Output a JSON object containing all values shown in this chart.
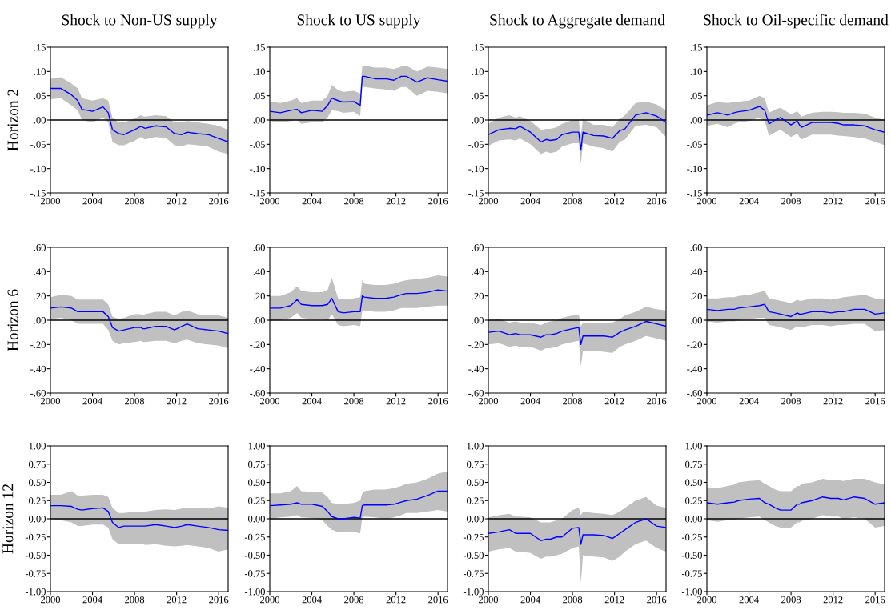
{
  "chart_data": [
    {
      "type": "line",
      "title": "Shock to Non-US supply",
      "ylabel": "Horizon 2",
      "x": [
        2000,
        2001,
        2002,
        2002.6,
        2003,
        2004,
        2005,
        2005.5,
        2005.9,
        2006.5,
        2007,
        2008,
        2008.6,
        2008.8,
        2009,
        2010,
        2011,
        2011.8,
        2012.5,
        2013,
        2014,
        2015,
        2016,
        2016.9
      ],
      "xlim": [
        2000,
        2016.9
      ],
      "xticks": [
        2000,
        2004,
        2008,
        2012,
        2016
      ],
      "ylim": [
        -0.15,
        0.15
      ],
      "yticks": [
        {
          "value": -0.15,
          "label": "-.15"
        },
        {
          "value": -0.1,
          "label": "-.10"
        },
        {
          "value": -0.05,
          "label": "-.05"
        },
        {
          "value": 0,
          "label": ".00"
        },
        {
          "value": 0.05,
          "label": ".05"
        },
        {
          "value": 0.1,
          "label": ".10"
        },
        {
          "value": 0.15,
          "label": ".15"
        }
      ],
      "ref_lines": [
        {
          "axis": "y",
          "value": 0,
          "color": "#000000"
        }
      ],
      "series": [
        {
          "color": "#0000ff",
          "values": [
            0.065,
            0.065,
            0.052,
            0.04,
            0.022,
            0.018,
            0.027,
            0.015,
            -0.02,
            -0.028,
            -0.03,
            -0.02,
            -0.013,
            -0.015,
            -0.017,
            -0.012,
            -0.014,
            -0.028,
            -0.03,
            -0.025,
            -0.028,
            -0.03,
            -0.038,
            -0.045
          ],
          "lower": [
            0.043,
            0.045,
            0.03,
            0.02,
            0,
            -0.005,
            0.005,
            -0.005,
            -0.045,
            -0.052,
            -0.052,
            -0.043,
            -0.035,
            -0.038,
            -0.04,
            -0.035,
            -0.037,
            -0.052,
            -0.055,
            -0.05,
            -0.052,
            -0.055,
            -0.065,
            -0.07
          ],
          "upper": [
            0.085,
            0.088,
            0.075,
            0.065,
            0.045,
            0.04,
            0.045,
            0.04,
            0.005,
            -0.005,
            -0.005,
            0.003,
            0.01,
            0.008,
            0.007,
            0.01,
            0.008,
            -0.005,
            -0.005,
            -0.002,
            -0.005,
            -0.008,
            -0.012,
            -0.02
          ]
        }
      ]
    },
    {
      "type": "line",
      "title": "Shock to US supply",
      "x": [
        2000,
        2001,
        2002,
        2002.6,
        2003,
        2004,
        2005,
        2005.5,
        2005.9,
        2006.5,
        2007,
        2008,
        2008.6,
        2008.8,
        2009,
        2010,
        2011,
        2011.8,
        2012.5,
        2013,
        2014,
        2015,
        2016,
        2016.9
      ],
      "xlim": [
        2000,
        2016.9
      ],
      "xticks": [
        2000,
        2004,
        2008,
        2012,
        2016
      ],
      "ylim": [
        -0.15,
        0.15
      ],
      "yticks": [
        {
          "value": -0.15,
          "label": "-.15"
        },
        {
          "value": -0.1,
          "label": "-.10"
        },
        {
          "value": -0.05,
          "label": "-.05"
        },
        {
          "value": 0,
          "label": ".00"
        },
        {
          "value": 0.05,
          "label": ".05"
        },
        {
          "value": 0.1,
          "label": ".10"
        },
        {
          "value": 0.15,
          "label": ".15"
        }
      ],
      "ref_lines": [
        {
          "axis": "y",
          "value": 0,
          "color": "#000000"
        }
      ],
      "series": [
        {
          "color": "#0000ff",
          "values": [
            0.018,
            0.015,
            0.02,
            0.022,
            0.015,
            0.02,
            0.018,
            0.03,
            0.045,
            0.04,
            0.037,
            0.038,
            0.03,
            0.09,
            0.09,
            0.085,
            0.085,
            0.082,
            0.09,
            0.09,
            0.078,
            0.087,
            0.083,
            0.08
          ],
          "lower": [
            -0.002,
            -0.005,
            -0.002,
            0,
            -0.008,
            -0.005,
            -0.005,
            0.005,
            0.02,
            0.018,
            0.015,
            0.017,
            0.008,
            0.07,
            0.068,
            0.065,
            0.063,
            0.06,
            0.068,
            0.068,
            0.05,
            0.06,
            0.058,
            0.055
          ],
          "upper": [
            0.038,
            0.035,
            0.04,
            0.045,
            0.035,
            0.04,
            0.04,
            0.05,
            0.072,
            0.062,
            0.058,
            0.06,
            0.055,
            0.112,
            0.112,
            0.108,
            0.108,
            0.105,
            0.11,
            0.112,
            0.1,
            0.11,
            0.108,
            0.105
          ]
        }
      ]
    },
    {
      "type": "line",
      "title": "Shock to Aggregate demand",
      "x": [
        2000,
        2001,
        2002,
        2002.6,
        2003,
        2004,
        2005,
        2005.5,
        2005.9,
        2006.5,
        2007,
        2008,
        2008.6,
        2008.8,
        2009,
        2010,
        2011,
        2011.8,
        2012.5,
        2013,
        2014,
        2015,
        2016,
        2016.9
      ],
      "xlim": [
        2000,
        2016.9
      ],
      "xticks": [
        2000,
        2004,
        2008,
        2012,
        2016
      ],
      "ylim": [
        -0.15,
        0.15
      ],
      "yticks": [
        {
          "value": -0.15,
          "label": "-.15"
        },
        {
          "value": -0.1,
          "label": "-.10"
        },
        {
          "value": -0.05,
          "label": "-.05"
        },
        {
          "value": 0,
          "label": ".00"
        },
        {
          "value": 0.05,
          "label": ".05"
        },
        {
          "value": 0.1,
          "label": ".10"
        },
        {
          "value": 0.15,
          "label": ".15"
        }
      ],
      "ref_lines": [
        {
          "axis": "y",
          "value": 0,
          "color": "#000000"
        }
      ],
      "series": [
        {
          "color": "#0000ff",
          "values": [
            -0.03,
            -0.02,
            -0.017,
            -0.018,
            -0.013,
            -0.025,
            -0.045,
            -0.04,
            -0.042,
            -0.04,
            -0.03,
            -0.025,
            -0.025,
            -0.062,
            -0.025,
            -0.032,
            -0.033,
            -0.038,
            -0.022,
            -0.018,
            0.01,
            0.015,
            0.008,
            -0.005
          ],
          "lower": [
            -0.053,
            -0.042,
            -0.04,
            -0.042,
            -0.038,
            -0.05,
            -0.07,
            -0.065,
            -0.068,
            -0.065,
            -0.055,
            -0.048,
            -0.048,
            -0.09,
            -0.048,
            -0.055,
            -0.058,
            -0.065,
            -0.045,
            -0.04,
            -0.012,
            -0.01,
            -0.015,
            -0.035
          ],
          "upper": [
            -0.008,
            0.005,
            0.01,
            0.005,
            0.008,
            -0.002,
            -0.02,
            -0.018,
            -0.018,
            -0.015,
            -0.008,
            0,
            0,
            -0.03,
            0.002,
            -0.01,
            -0.01,
            -0.015,
            0.002,
            0.01,
            0.035,
            0.038,
            0.032,
            0.02
          ]
        }
      ]
    },
    {
      "type": "line",
      "title": "Shock to Oil-specific demand",
      "x": [
        2000,
        2001,
        2002,
        2002.6,
        2003,
        2004,
        2005,
        2005.5,
        2005.9,
        2006.5,
        2007,
        2008,
        2008.6,
        2008.8,
        2009,
        2010,
        2011,
        2011.8,
        2012.5,
        2013,
        2014,
        2015,
        2016,
        2016.9
      ],
      "xlim": [
        2000,
        2016.9
      ],
      "xticks": [
        2000,
        2004,
        2008,
        2012,
        2016
      ],
      "ylim": [
        -0.15,
        0.15
      ],
      "yticks": [
        {
          "value": -0.15,
          "label": "-.15"
        },
        {
          "value": -0.1,
          "label": "-.10"
        },
        {
          "value": -0.05,
          "label": "-.05"
        },
        {
          "value": 0,
          "label": ".00"
        },
        {
          "value": 0.05,
          "label": ".05"
        },
        {
          "value": 0.1,
          "label": ".10"
        },
        {
          "value": 0.15,
          "label": ".15"
        }
      ],
      "ref_lines": [
        {
          "axis": "y",
          "value": 0,
          "color": "#000000"
        }
      ],
      "series": [
        {
          "color": "#0000ff",
          "values": [
            0.01,
            0.015,
            0.01,
            0.015,
            0.017,
            0.02,
            0.028,
            0.02,
            -0.008,
            0,
            0.005,
            -0.01,
            -0.002,
            -0.01,
            -0.015,
            -0.005,
            -0.005,
            -0.005,
            -0.007,
            -0.01,
            -0.01,
            -0.012,
            -0.02,
            -0.025
          ],
          "lower": [
            -0.012,
            -0.008,
            -0.015,
            -0.008,
            -0.005,
            -0.002,
            0.005,
            -0.002,
            -0.032,
            -0.025,
            -0.02,
            -0.035,
            -0.028,
            -0.035,
            -0.04,
            -0.03,
            -0.03,
            -0.03,
            -0.032,
            -0.033,
            -0.035,
            -0.038,
            -0.045,
            -0.052
          ],
          "upper": [
            0.03,
            0.037,
            0.035,
            0.037,
            0.038,
            0.04,
            0.05,
            0.045,
            0.015,
            0.022,
            0.025,
            0.012,
            0.018,
            0.012,
            0.007,
            0.015,
            0.017,
            0.017,
            0.016,
            0.015,
            0.015,
            0.013,
            0.005,
            0
          ]
        }
      ]
    },
    {
      "type": "line",
      "ylabel": "Horizon 6",
      "x": [
        2000,
        2001,
        2002,
        2002.6,
        2003,
        2004,
        2005,
        2005.5,
        2005.9,
        2006.5,
        2007,
        2008,
        2008.6,
        2008.8,
        2009,
        2010,
        2011,
        2011.8,
        2012.5,
        2013,
        2014,
        2015,
        2016,
        2016.9
      ],
      "xlim": [
        2000,
        2016.9
      ],
      "xticks": [
        2000,
        2004,
        2008,
        2012,
        2016
      ],
      "ylim": [
        -0.6,
        0.6
      ],
      "yticks": [
        {
          "value": -0.6,
          "label": "-.60"
        },
        {
          "value": -0.4,
          "label": "-.40"
        },
        {
          "value": -0.2,
          "label": "-.20"
        },
        {
          "value": 0,
          "label": ".00"
        },
        {
          "value": 0.2,
          "label": ".20"
        },
        {
          "value": 0.4,
          "label": ".40"
        },
        {
          "value": 0.6,
          "label": ".60"
        }
      ],
      "ref_lines": [
        {
          "axis": "y",
          "value": 0,
          "color": "#000000"
        }
      ],
      "series": [
        {
          "color": "#0000ff",
          "values": [
            0.1,
            0.11,
            0.1,
            0.07,
            0.07,
            0.07,
            0.07,
            0.03,
            -0.06,
            -0.09,
            -0.08,
            -0.06,
            -0.06,
            -0.07,
            -0.07,
            -0.05,
            -0.05,
            -0.08,
            -0.05,
            -0.03,
            -0.07,
            -0.08,
            -0.09,
            -0.11
          ],
          "lower": [
            0.01,
            0.02,
            0,
            -0.03,
            -0.03,
            -0.03,
            -0.03,
            -0.08,
            -0.17,
            -0.2,
            -0.19,
            -0.18,
            -0.17,
            -0.18,
            -0.18,
            -0.17,
            -0.17,
            -0.19,
            -0.17,
            -0.16,
            -0.19,
            -0.2,
            -0.21,
            -0.23
          ],
          "upper": [
            0.19,
            0.21,
            0.2,
            0.17,
            0.17,
            0.17,
            0.17,
            0.13,
            0.03,
            0.01,
            0.02,
            0.05,
            0.05,
            0.04,
            0.05,
            0.07,
            0.07,
            0.04,
            0.07,
            0.08,
            0.05,
            0.04,
            0.04,
            0.02
          ]
        }
      ]
    },
    {
      "type": "line",
      "x": [
        2000,
        2001,
        2002,
        2002.6,
        2003,
        2004,
        2005,
        2005.5,
        2005.9,
        2006.5,
        2007,
        2008,
        2008.6,
        2008.8,
        2009,
        2010,
        2011,
        2011.8,
        2012.5,
        2013,
        2014,
        2015,
        2016,
        2016.9
      ],
      "xlim": [
        2000,
        2016.9
      ],
      "xticks": [
        2000,
        2004,
        2008,
        2012,
        2016
      ],
      "ylim": [
        -0.6,
        0.6
      ],
      "yticks": [
        {
          "value": -0.6,
          "label": "-.60"
        },
        {
          "value": -0.4,
          "label": "-.40"
        },
        {
          "value": -0.2,
          "label": "-.20"
        },
        {
          "value": 0,
          "label": ".00"
        },
        {
          "value": 0.2,
          "label": ".20"
        },
        {
          "value": 0.4,
          "label": ".40"
        },
        {
          "value": 0.6,
          "label": ".60"
        }
      ],
      "ref_lines": [
        {
          "axis": "y",
          "value": 0,
          "color": "#000000"
        }
      ],
      "series": [
        {
          "color": "#0000ff",
          "values": [
            0.1,
            0.1,
            0.12,
            0.17,
            0.13,
            0.12,
            0.12,
            0.13,
            0.18,
            0.07,
            0.06,
            0.07,
            0.07,
            0.2,
            0.19,
            0.18,
            0.18,
            0.19,
            0.21,
            0.22,
            0.22,
            0.23,
            0.25,
            0.24
          ],
          "lower": [
            0,
            0,
            0.02,
            0.06,
            0.02,
            0.01,
            0.01,
            0,
            0.05,
            -0.04,
            -0.05,
            -0.04,
            -0.05,
            0.08,
            0.08,
            0.07,
            0.07,
            0.08,
            0.1,
            0.1,
            0.1,
            0.11,
            0.12,
            0.12
          ],
          "upper": [
            0.2,
            0.2,
            0.23,
            0.28,
            0.24,
            0.23,
            0.23,
            0.25,
            0.35,
            0.18,
            0.17,
            0.18,
            0.19,
            0.33,
            0.3,
            0.29,
            0.29,
            0.3,
            0.32,
            0.33,
            0.34,
            0.35,
            0.37,
            0.36
          ]
        }
      ]
    },
    {
      "type": "line",
      "x": [
        2000,
        2001,
        2002,
        2002.6,
        2003,
        2004,
        2005,
        2005.5,
        2005.9,
        2006.5,
        2007,
        2008,
        2008.6,
        2008.8,
        2009,
        2010,
        2011,
        2011.8,
        2012.5,
        2013,
        2014,
        2015,
        2016,
        2016.9
      ],
      "xlim": [
        2000,
        2016.9
      ],
      "xticks": [
        2000,
        2004,
        2008,
        2012,
        2016
      ],
      "ylim": [
        -0.6,
        0.6
      ],
      "yticks": [
        {
          "value": -0.6,
          "label": "-.60"
        },
        {
          "value": -0.4,
          "label": "-.40"
        },
        {
          "value": -0.2,
          "label": "-.20"
        },
        {
          "value": 0,
          "label": ".00"
        },
        {
          "value": 0.2,
          "label": ".20"
        },
        {
          "value": 0.4,
          "label": ".40"
        },
        {
          "value": 0.6,
          "label": ".60"
        }
      ],
      "ref_lines": [
        {
          "axis": "y",
          "value": 0,
          "color": "#000000"
        }
      ],
      "series": [
        {
          "color": "#0000ff",
          "values": [
            -0.1,
            -0.09,
            -0.12,
            -0.11,
            -0.12,
            -0.12,
            -0.14,
            -0.12,
            -0.12,
            -0.11,
            -0.09,
            -0.07,
            -0.06,
            -0.2,
            -0.13,
            -0.13,
            -0.13,
            -0.14,
            -0.1,
            -0.08,
            -0.05,
            -0.01,
            -0.03,
            -0.05
          ],
          "lower": [
            -0.2,
            -0.19,
            -0.22,
            -0.21,
            -0.22,
            -0.22,
            -0.25,
            -0.23,
            -0.23,
            -0.22,
            -0.2,
            -0.18,
            -0.17,
            -0.38,
            -0.25,
            -0.25,
            -0.26,
            -0.27,
            -0.22,
            -0.2,
            -0.17,
            -0.13,
            -0.15,
            -0.17
          ],
          "upper": [
            0,
            0.01,
            -0.02,
            -0.01,
            -0.02,
            -0.02,
            -0.04,
            -0.02,
            -0.01,
            0,
            0.02,
            0.04,
            0.05,
            -0.05,
            -0.02,
            -0.02,
            -0.02,
            -0.02,
            0.01,
            0.04,
            0.07,
            0.11,
            0.09,
            0.08
          ]
        }
      ]
    },
    {
      "type": "line",
      "x": [
        2000,
        2001,
        2002,
        2002.6,
        2003,
        2004,
        2005,
        2005.5,
        2005.9,
        2006.5,
        2007,
        2008,
        2008.6,
        2008.8,
        2009,
        2010,
        2011,
        2011.8,
        2012.5,
        2013,
        2014,
        2015,
        2016,
        2016.9
      ],
      "xlim": [
        2000,
        2016.9
      ],
      "xticks": [
        2000,
        2004,
        2008,
        2012,
        2016
      ],
      "ylim": [
        -0.6,
        0.6
      ],
      "yticks": [
        {
          "value": -0.6,
          "label": "-.60"
        },
        {
          "value": -0.4,
          "label": "-.40"
        },
        {
          "value": -0.2,
          "label": "-.20"
        },
        {
          "value": 0,
          "label": ".00"
        },
        {
          "value": 0.2,
          "label": ".20"
        },
        {
          "value": 0.4,
          "label": ".40"
        },
        {
          "value": 0.6,
          "label": ".60"
        }
      ],
      "ref_lines": [
        {
          "axis": "y",
          "value": 0,
          "color": "#000000"
        }
      ],
      "series": [
        {
          "color": "#0000ff",
          "values": [
            0.09,
            0.08,
            0.09,
            0.09,
            0.1,
            0.11,
            0.12,
            0.13,
            0.07,
            0.06,
            0.05,
            0.03,
            0.06,
            0.05,
            0.05,
            0.07,
            0.07,
            0.06,
            0.07,
            0.07,
            0.09,
            0.09,
            0.05,
            0.06
          ],
          "lower": [
            -0.01,
            -0.02,
            -0.01,
            -0.01,
            0,
            0.01,
            0.02,
            0.02,
            -0.04,
            -0.05,
            -0.06,
            -0.08,
            -0.05,
            -0.06,
            -0.06,
            -0.04,
            -0.04,
            -0.05,
            -0.04,
            -0.04,
            -0.03,
            -0.03,
            -0.09,
            -0.08
          ],
          "upper": [
            0.18,
            0.18,
            0.19,
            0.19,
            0.2,
            0.21,
            0.23,
            0.24,
            0.18,
            0.17,
            0.16,
            0.14,
            0.17,
            0.16,
            0.16,
            0.18,
            0.18,
            0.17,
            0.18,
            0.19,
            0.2,
            0.21,
            0.18,
            0.17
          ]
        }
      ]
    },
    {
      "type": "line",
      "ylabel": "Horizon 12",
      "x": [
        2000,
        2001,
        2002,
        2002.6,
        2003,
        2004,
        2005,
        2005.5,
        2005.9,
        2006.5,
        2007,
        2008,
        2008.6,
        2008.8,
        2009,
        2010,
        2011,
        2011.8,
        2012.5,
        2013,
        2014,
        2015,
        2016,
        2016.9
      ],
      "xlim": [
        2000,
        2016.9
      ],
      "xticks": [
        2000,
        2004,
        2008,
        2012,
        2016
      ],
      "ylim": [
        -1,
        1
      ],
      "yticks": [
        {
          "value": -1,
          "label": "-1.00"
        },
        {
          "value": -0.75,
          "label": "-0.75"
        },
        {
          "value": -0.5,
          "label": "-0.50"
        },
        {
          "value": -0.25,
          "label": "-0.25"
        },
        {
          "value": 0,
          "label": "0.00"
        },
        {
          "value": 0.25,
          "label": "0.25"
        },
        {
          "value": 0.5,
          "label": "0.50"
        },
        {
          "value": 0.75,
          "label": "0.75"
        },
        {
          "value": 1,
          "label": "1.00"
        }
      ],
      "ref_lines": [
        {
          "axis": "y",
          "value": 0,
          "color": "#000000"
        }
      ],
      "series": [
        {
          "color": "#0000ff",
          "values": [
            0.18,
            0.18,
            0.17,
            0.13,
            0.12,
            0.14,
            0.15,
            0.1,
            -0.05,
            -0.12,
            -0.1,
            -0.1,
            -0.1,
            -0.1,
            -0.1,
            -0.08,
            -0.1,
            -0.12,
            -0.1,
            -0.08,
            -0.1,
            -0.12,
            -0.15,
            -0.16
          ],
          "lower": [
            0,
            -0.02,
            -0.05,
            -0.1,
            -0.1,
            -0.08,
            -0.08,
            -0.12,
            -0.28,
            -0.35,
            -0.35,
            -0.35,
            -0.35,
            -0.35,
            -0.36,
            -0.35,
            -0.37,
            -0.38,
            -0.37,
            -0.36,
            -0.38,
            -0.4,
            -0.45,
            -0.42
          ],
          "upper": [
            0.33,
            0.33,
            0.38,
            0.32,
            0.32,
            0.33,
            0.33,
            0.3,
            0.15,
            0.08,
            0.08,
            0.1,
            0.1,
            0.1,
            0.1,
            0.12,
            0.13,
            0.12,
            0.14,
            0.15,
            0.15,
            0.14,
            0.17,
            0.15
          ]
        }
      ]
    },
    {
      "type": "line",
      "x": [
        2000,
        2001,
        2002,
        2002.6,
        2003,
        2004,
        2005,
        2005.5,
        2005.9,
        2006.5,
        2007,
        2008,
        2008.6,
        2008.8,
        2009,
        2010,
        2011,
        2011.8,
        2012.5,
        2013,
        2014,
        2015,
        2016,
        2016.9
      ],
      "xlim": [
        2000,
        2016.9
      ],
      "xticks": [
        2000,
        2004,
        2008,
        2012,
        2016
      ],
      "ylim": [
        -1,
        1
      ],
      "yticks": [
        {
          "value": -1,
          "label": "-1.00"
        },
        {
          "value": -0.75,
          "label": "-0.75"
        },
        {
          "value": -0.5,
          "label": "-0.50"
        },
        {
          "value": -0.25,
          "label": "-0.25"
        },
        {
          "value": 0,
          "label": "0.00"
        },
        {
          "value": 0.25,
          "label": "0.25"
        },
        {
          "value": 0.5,
          "label": "0.50"
        },
        {
          "value": 0.75,
          "label": "0.75"
        },
        {
          "value": 1,
          "label": "1.00"
        }
      ],
      "ref_lines": [
        {
          "axis": "y",
          "value": 0,
          "color": "#000000"
        }
      ],
      "series": [
        {
          "color": "#0000ff",
          "values": [
            0.18,
            0.19,
            0.2,
            0.22,
            0.2,
            0.2,
            0.17,
            0.1,
            0.03,
            0,
            0,
            0.02,
            0.01,
            0.18,
            0.19,
            0.19,
            0.19,
            0.2,
            0.23,
            0.25,
            0.27,
            0.32,
            0.38,
            0.38
          ],
          "lower": [
            0,
            0.02,
            0.03,
            0.05,
            0.02,
            0.01,
            -0.02,
            -0.1,
            -0.15,
            -0.18,
            -0.18,
            -0.18,
            -0.2,
            0.02,
            0.03,
            0.02,
            0,
            0.02,
            0.05,
            0.08,
            0.08,
            0.1,
            0.12,
            0.1
          ],
          "upper": [
            0.35,
            0.35,
            0.38,
            0.45,
            0.38,
            0.37,
            0.36,
            0.3,
            0.22,
            0.2,
            0.2,
            0.22,
            0.25,
            0.35,
            0.38,
            0.4,
            0.4,
            0.42,
            0.45,
            0.48,
            0.5,
            0.55,
            0.62,
            0.65
          ]
        }
      ]
    },
    {
      "type": "line",
      "x": [
        2000,
        2001,
        2002,
        2002.6,
        2003,
        2004,
        2005,
        2005.5,
        2005.9,
        2006.5,
        2007,
        2008,
        2008.6,
        2008.8,
        2009,
        2010,
        2011,
        2011.8,
        2012.5,
        2013,
        2014,
        2015,
        2016,
        2016.9
      ],
      "xlim": [
        2000,
        2016.9
      ],
      "xticks": [
        2000,
        2004,
        2008,
        2012,
        2016
      ],
      "ylim": [
        -1,
        1
      ],
      "yticks": [
        {
          "value": -1,
          "label": "-1.00"
        },
        {
          "value": -0.75,
          "label": "-0.75"
        },
        {
          "value": -0.5,
          "label": "-0.50"
        },
        {
          "value": -0.25,
          "label": "-0.25"
        },
        {
          "value": 0,
          "label": "0.00"
        },
        {
          "value": 0.25,
          "label": "0.25"
        },
        {
          "value": 0.5,
          "label": "0.50"
        },
        {
          "value": 0.75,
          "label": "0.75"
        },
        {
          "value": 1,
          "label": "1.00"
        }
      ],
      "ref_lines": [
        {
          "axis": "y",
          "value": 0,
          "color": "#000000"
        }
      ],
      "series": [
        {
          "color": "#0000ff",
          "values": [
            -0.2,
            -0.18,
            -0.15,
            -0.2,
            -0.2,
            -0.2,
            -0.3,
            -0.28,
            -0.28,
            -0.25,
            -0.25,
            -0.13,
            -0.12,
            -0.35,
            -0.22,
            -0.22,
            -0.23,
            -0.27,
            -0.2,
            -0.15,
            -0.05,
            0,
            -0.1,
            -0.12
          ],
          "lower": [
            -0.45,
            -0.42,
            -0.4,
            -0.45,
            -0.45,
            -0.47,
            -0.55,
            -0.52,
            -0.52,
            -0.5,
            -0.48,
            -0.4,
            -0.38,
            -0.88,
            -0.5,
            -0.52,
            -0.53,
            -0.58,
            -0.52,
            -0.45,
            -0.35,
            -0.3,
            -0.4,
            -0.45
          ],
          "upper": [
            0.02,
            0.05,
            0.07,
            0.03,
            0.03,
            0.02,
            -0.05,
            -0.05,
            -0.05,
            -0.02,
            0,
            0.12,
            0.15,
            0.05,
            0.1,
            0.08,
            0.07,
            0.05,
            0.1,
            0.15,
            0.25,
            0.3,
            0.18,
            0.15
          ]
        }
      ]
    },
    {
      "type": "line",
      "x": [
        2000,
        2001,
        2002,
        2002.6,
        2003,
        2004,
        2005,
        2005.5,
        2005.9,
        2006.5,
        2007,
        2008,
        2008.6,
        2008.8,
        2009,
        2010,
        2011,
        2011.8,
        2012.5,
        2013,
        2014,
        2015,
        2016,
        2016.9
      ],
      "xlim": [
        2000,
        2016.9
      ],
      "xticks": [
        2000,
        2004,
        2008,
        2012,
        2016
      ],
      "ylim": [
        -1,
        1
      ],
      "yticks": [
        {
          "value": -1,
          "label": "-1.00"
        },
        {
          "value": -0.75,
          "label": "-0.75"
        },
        {
          "value": -0.5,
          "label": "-0.50"
        },
        {
          "value": -0.25,
          "label": "-0.25"
        },
        {
          "value": 0,
          "label": "0.00"
        },
        {
          "value": 0.25,
          "label": "0.25"
        },
        {
          "value": 0.5,
          "label": "0.50"
        },
        {
          "value": 0.75,
          "label": "0.75"
        },
        {
          "value": 1,
          "label": "1.00"
        }
      ],
      "ref_lines": [
        {
          "axis": "y",
          "value": 0,
          "color": "#000000"
        }
      ],
      "series": [
        {
          "color": "#0000ff",
          "values": [
            0.22,
            0.2,
            0.22,
            0.23,
            0.25,
            0.27,
            0.28,
            0.22,
            0.2,
            0.15,
            0.12,
            0.12,
            0.2,
            0.2,
            0.22,
            0.25,
            0.3,
            0.28,
            0.28,
            0.26,
            0.3,
            0.28,
            0.2,
            0.22
          ],
          "lower": [
            -0.02,
            -0.04,
            -0.02,
            -0.01,
            0,
            0.02,
            0.03,
            -0.02,
            -0.05,
            -0.1,
            -0.12,
            -0.12,
            -0.05,
            -0.05,
            -0.03,
            0,
            0.05,
            0.03,
            0.03,
            0,
            0.02,
            0,
            -0.12,
            -0.1
          ],
          "upper": [
            0.43,
            0.42,
            0.45,
            0.47,
            0.5,
            0.52,
            0.53,
            0.48,
            0.45,
            0.4,
            0.38,
            0.38,
            0.45,
            0.45,
            0.48,
            0.5,
            0.55,
            0.53,
            0.53,
            0.52,
            0.55,
            0.55,
            0.5,
            0.47
          ]
        }
      ]
    }
  ]
}
